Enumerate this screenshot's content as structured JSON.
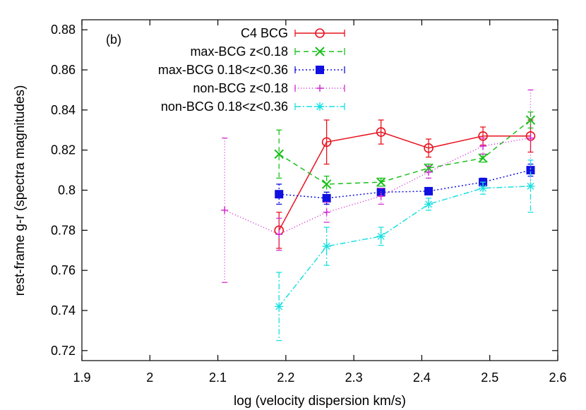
{
  "chart_data": {
    "type": "line",
    "panel_label": "(b)",
    "xlabel": "log (velocity dispersion km/s)",
    "ylabel": "rest-frame g-r (spectra magnitudes)",
    "xlim": [
      1.9,
      2.6
    ],
    "ylim": [
      0.715,
      0.885
    ],
    "xticks": [
      1.9,
      2.0,
      2.1,
      2.2,
      2.3,
      2.4,
      2.5,
      2.6
    ],
    "xtick_labels": [
      "1.9",
      "2",
      "2.1",
      "2.2",
      "2.3",
      "2.4",
      "2.5",
      "2.6"
    ],
    "yticks": [
      0.72,
      0.74,
      0.76,
      0.78,
      0.8,
      0.82,
      0.84,
      0.86,
      0.88
    ],
    "ytick_labels": [
      "0.72",
      "0.74",
      "0.76",
      "0.78",
      "0.8",
      "0.82",
      "0.84",
      "0.86",
      "0.88"
    ],
    "grid": false,
    "legend_position": "top-center",
    "series": [
      {
        "name": "C4 BCG",
        "color": "#e8121e",
        "dash": "",
        "marker": "circle",
        "x": [
          2.19,
          2.26,
          2.34,
          2.41,
          2.49,
          2.56
        ],
        "y": [
          0.78,
          0.824,
          0.829,
          0.821,
          0.827,
          0.827
        ],
        "err": [
          0.009,
          0.011,
          0.006,
          0.0045,
          0.0045,
          0.008
        ]
      },
      {
        "name": "max-BCG z<0.18",
        "color": "#18c01a",
        "dash": "7,5",
        "marker": "x",
        "x": [
          2.19,
          2.26,
          2.34,
          2.41,
          2.49,
          2.56
        ],
        "y": [
          0.818,
          0.803,
          0.804,
          0.811,
          0.816,
          0.835
        ],
        "err": [
          0.012,
          0.004,
          0.002,
          0.002,
          0.002,
          0.004
        ]
      },
      {
        "name": "max-BCG 0.18<z<0.36",
        "color": "#1010e0",
        "dash": "2,3",
        "marker": "square",
        "x": [
          2.19,
          2.26,
          2.34,
          2.41,
          2.49,
          2.56
        ],
        "y": [
          0.798,
          0.796,
          0.799,
          0.7995,
          0.804,
          0.81
        ],
        "err": [
          0.005,
          0.003,
          0.002,
          0.0015,
          0.002,
          0.003
        ]
      },
      {
        "name": "non-BCG z<0.18",
        "color": "#d22cd2",
        "dash": "1,3",
        "marker": "plus",
        "x": [
          2.11,
          2.19,
          2.26,
          2.34,
          2.41,
          2.49,
          2.56
        ],
        "y": [
          0.79,
          0.778,
          0.789,
          0.797,
          0.809,
          0.822,
          0.826
        ],
        "err": [
          0.036,
          0.008,
          0.005,
          0.004,
          0.003,
          0.004,
          0.024
        ]
      },
      {
        "name": "non-BCG 0.18<z<0.36",
        "color": "#1ae0e0",
        "dash": "8,3,2,3",
        "marker": "star",
        "x": [
          2.19,
          2.26,
          2.34,
          2.41,
          2.49,
          2.56
        ],
        "y": [
          0.742,
          0.772,
          0.777,
          0.793,
          0.801,
          0.802
        ],
        "err": [
          0.017,
          0.0095,
          0.0045,
          0.003,
          0.003,
          0.013
        ]
      }
    ]
  }
}
